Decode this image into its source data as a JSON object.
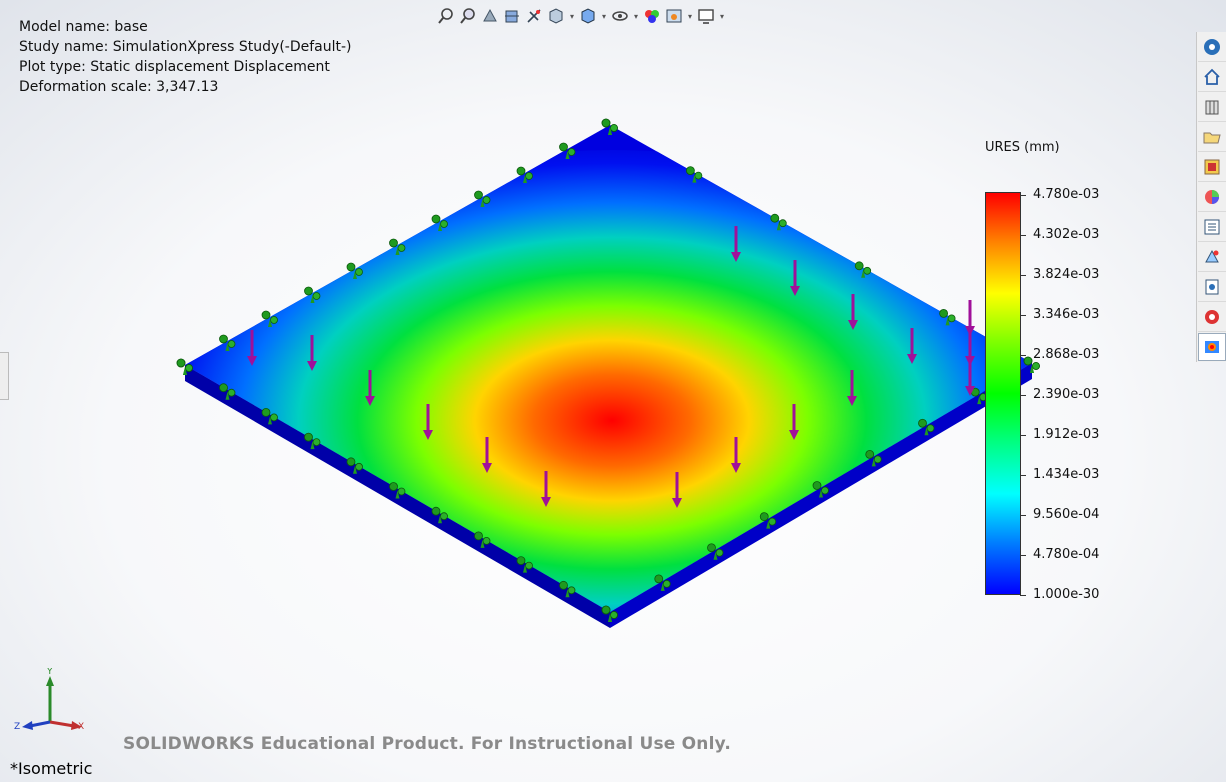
{
  "info": {
    "model_name": "Model name: base",
    "study_name": "Study name: SimulationXpress Study(-Default-)",
    "plot_type": "Plot type: Static displacement Displacement",
    "deformation_scale": "Deformation scale: 3,347.13"
  },
  "legend": {
    "title": "URES (mm)",
    "labels": [
      "4.780e-03",
      "4.302e-03",
      "3.824e-03",
      "3.346e-03",
      "2.868e-03",
      "2.390e-03",
      "1.912e-03",
      "1.434e-03",
      "9.560e-04",
      "4.780e-04",
      "1.000e-30"
    ]
  },
  "toolbar": {
    "icons": [
      "zoom-to-fit-icon",
      "zoom-to-area-icon",
      "previous-view-icon",
      "section-view-icon",
      "dynamic-annotation-icon",
      "view-orientation-icon",
      "display-style-icon",
      "hide-show-items-icon",
      "edit-appearance-icon",
      "apply-scene-icon",
      "view-settings-icon"
    ]
  },
  "rightbar": {
    "icons": [
      "solidworks-resources-icon",
      "home-icon",
      "design-library-icon",
      "file-explorer-icon",
      "view-palette-icon",
      "appearances-icon",
      "custom-properties-icon",
      "simulationxpress-icon",
      "forum-icon",
      "costing-icon",
      "simulation-results-icon"
    ]
  },
  "triad": {
    "x": "X",
    "y": "Y",
    "z": "Z"
  },
  "watermark": "SOLIDWORKS Educational Product. For Instructional Use Only.",
  "view_name": "*Isometric"
}
